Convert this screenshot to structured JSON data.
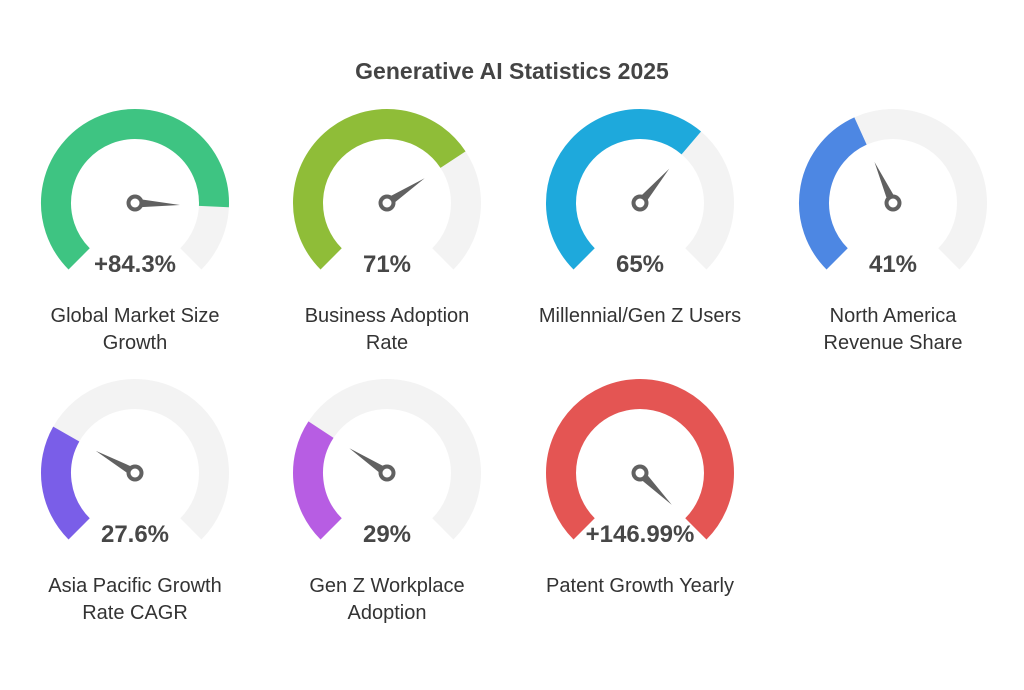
{
  "chart_data": {
    "type": "gauge",
    "title": "Generative AI Statistics 2025",
    "gauges": [
      {
        "label": "Global Market Size Growth",
        "label_lines": [
          "Global Market Size",
          "Growth"
        ],
        "display": "+84.3%",
        "value": 84.3,
        "color": "#3ec482"
      },
      {
        "label": "Business Adoption Rate",
        "label_lines": [
          "Business Adoption",
          "Rate"
        ],
        "display": "71%",
        "value": 71,
        "color": "#8fbd38"
      },
      {
        "label": "Millennial/Gen Z Users",
        "label_lines": [
          "Millennial/Gen Z Users",
          ""
        ],
        "display": "65%",
        "value": 65,
        "color": "#1ea9dc"
      },
      {
        "label": "North America Revenue Share",
        "label_lines": [
          "North America",
          "Revenue Share"
        ],
        "display": "41%",
        "value": 41,
        "color": "#4d87e3"
      },
      {
        "label": "Asia Pacific Growth Rate CAGR",
        "label_lines": [
          "Asia Pacific Growth",
          "Rate CAGR"
        ],
        "display": "27.6%",
        "value": 27.6,
        "color": "#7a5ee8"
      },
      {
        "label": "Gen Z Workplace Adoption",
        "label_lines": [
          "Gen Z Workplace",
          "Adoption"
        ],
        "display": "29%",
        "value": 29,
        "color": "#b75de3"
      },
      {
        "label": "Patent Growth Yearly",
        "label_lines": [
          "Patent Growth Yearly",
          ""
        ],
        "display": "+146.99%",
        "value": 146.99,
        "color": "#e45553"
      }
    ],
    "range": [
      0,
      100
    ],
    "track_color": "#f3f3f3",
    "needle_color": "#616161"
  }
}
